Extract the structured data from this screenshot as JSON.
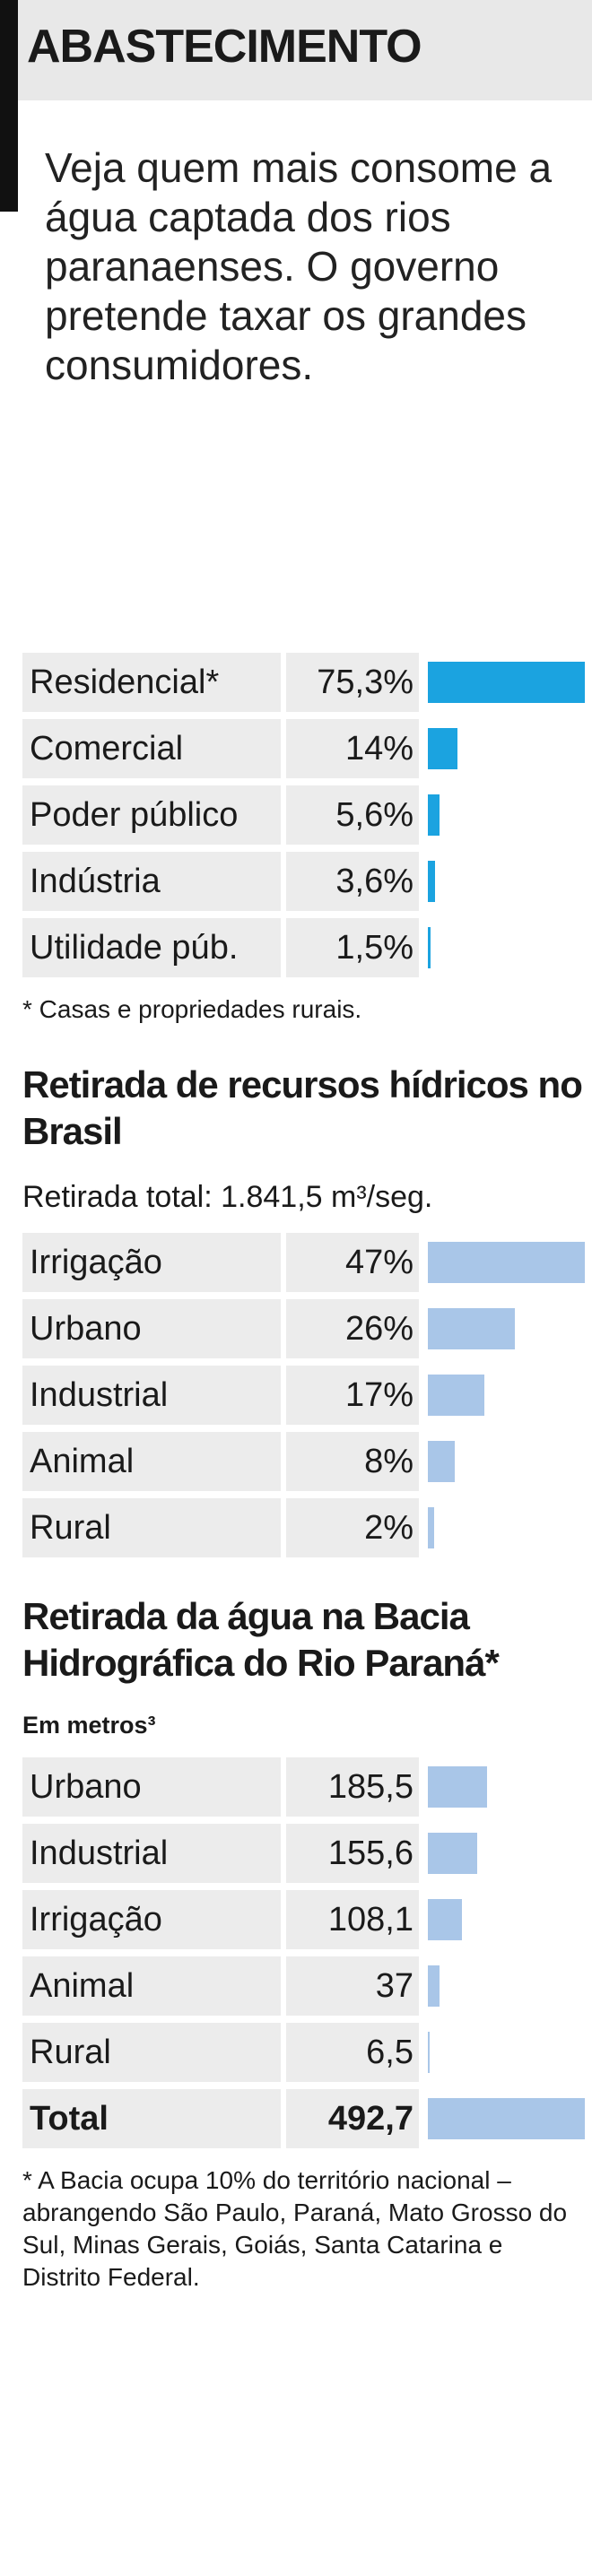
{
  "header": {
    "title": "ABASTECIMENTO",
    "intro": "Veja quem mais consome a água captada dos rios paranaenses. O governo pretende taxar os grandes consumidores."
  },
  "chart_data": [
    {
      "type": "bar",
      "categories": [
        "Residencial*",
        "Comercial",
        "Poder público",
        "Indústria",
        "Utilidade púb."
      ],
      "values": [
        75.3,
        14,
        5.6,
        3.6,
        1.5
      ],
      "value_labels": [
        "75,3%",
        "14%",
        "5,6%",
        "3,6%",
        "1,5%"
      ],
      "color": "#1ba3e0",
      "xlim": [
        0,
        75.3
      ],
      "note": "* Casas e propriedades rurais."
    },
    {
      "type": "bar",
      "title": "Retirada de recursos hídricos no Brasil",
      "subtitle": "Retirada total: 1.841,5 m³/seg.",
      "categories": [
        "Irrigação",
        "Urbano",
        "Industrial",
        "Animal",
        "Rural"
      ],
      "values": [
        47,
        26,
        17,
        8,
        2
      ],
      "value_labels": [
        "47%",
        "26%",
        "17%",
        "8%",
        "2%"
      ],
      "color": "#a9c6e8",
      "xlim": [
        0,
        47
      ]
    },
    {
      "type": "bar",
      "title": "Retirada da água na Bacia Hidrográfica do Rio Paraná*",
      "subtitle": "Em metros³",
      "categories": [
        "Urbano",
        "Industrial",
        "Irrigação",
        "Animal",
        "Rural",
        "Total"
      ],
      "values": [
        185.5,
        155.6,
        108.1,
        37,
        6.5,
        492.7
      ],
      "value_labels": [
        "185,5",
        "155,6",
        "108,1",
        "37",
        "6,5",
        "492,7"
      ],
      "color": "#a9c6e8",
      "xlim": [
        0,
        492.7
      ],
      "note": "* A Bacia ocupa 10% do território nacional – abrangendo São Paulo, Paraná, Mato Grosso do Sul, Minas Gerais, Goiás, Santa Catarina e Distrito Federal."
    }
  ]
}
